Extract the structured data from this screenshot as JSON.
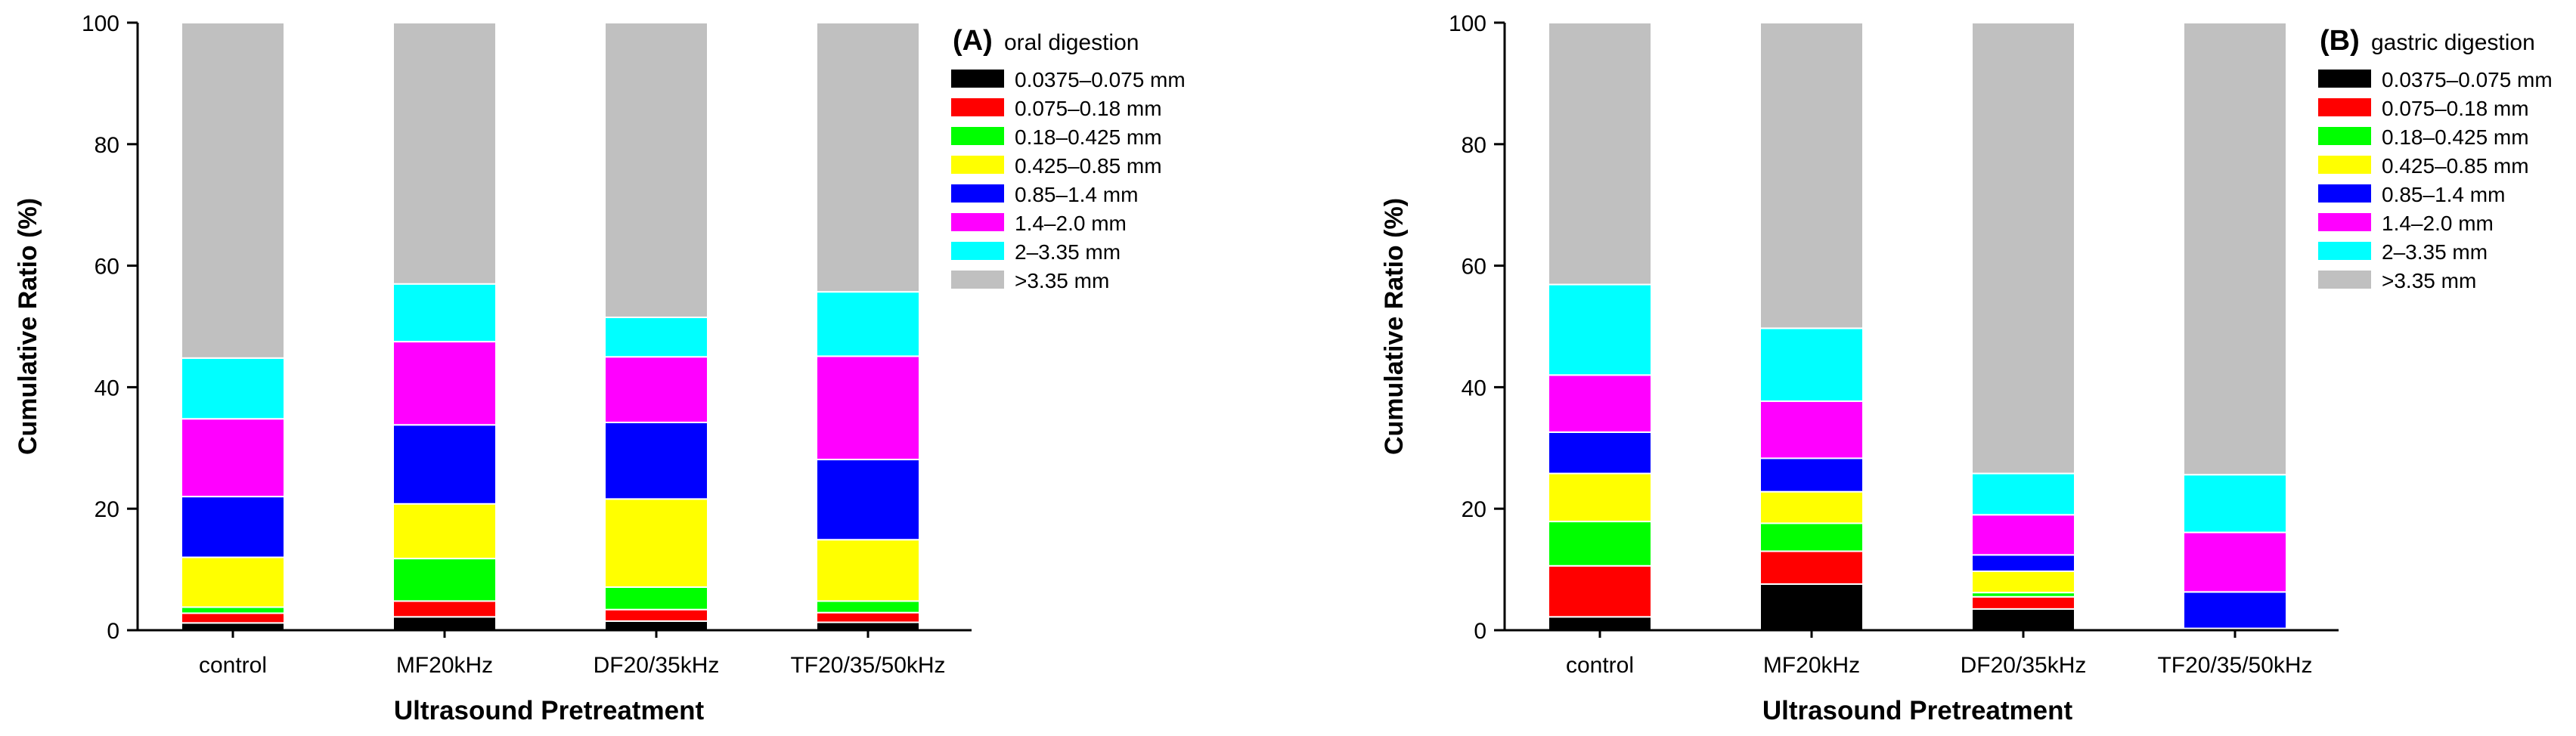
{
  "chart_data": [
    {
      "type": "bar",
      "stacked": true,
      "panel_label": "(A)",
      "title": "oral digestion",
      "xlabel": "Ultrasound Pretreatment",
      "ylabel": "Cumulative Ratio (%)",
      "ylim": [
        0,
        100
      ],
      "yticks": [
        "0",
        "20",
        "40",
        "60",
        "80",
        "100"
      ],
      "grid": false,
      "legend_position": "top-right",
      "categories": [
        "control",
        "MF20kHz",
        "DF20/35kHz",
        "TF20/35/50kHz"
      ],
      "series": [
        {
          "name": "0.0375–0.075 mm",
          "color": "#000000",
          "values": [
            1.2,
            2.2,
            1.5,
            1.3
          ]
        },
        {
          "name": "0.075–0.18 mm",
          "color": "#ff0000",
          "values": [
            1.6,
            2.6,
            1.9,
            1.6
          ]
        },
        {
          "name": "0.18–0.425 mm",
          "color": "#00ff00",
          "values": [
            1.0,
            7.0,
            3.7,
            1.9
          ]
        },
        {
          "name": "0.425–0.85 mm",
          "color": "#ffff00",
          "values": [
            8.2,
            9.0,
            14.5,
            10.1
          ]
        },
        {
          "name": "0.85–1.4 mm",
          "color": "#0000ff",
          "values": [
            10.0,
            13.0,
            12.6,
            13.2
          ]
        },
        {
          "name": "1.4–2.0 mm",
          "color": "#ff00ff",
          "values": [
            12.8,
            13.7,
            10.8,
            17.0
          ]
        },
        {
          "name": "2–3.35 mm",
          "color": "#00ffff",
          "values": [
            10.0,
            9.5,
            6.5,
            10.6
          ]
        },
        {
          "name": ">3.35 mm",
          "color": "#c0c0c0",
          "values": [
            55.2,
            43.0,
            48.5,
            44.3
          ]
        }
      ]
    },
    {
      "type": "bar",
      "stacked": true,
      "panel_label": "(B)",
      "title": "gastric digestion",
      "xlabel": "Ultrasound Pretreatment",
      "ylabel": "Cumulative Ratio (%)",
      "ylim": [
        0,
        100
      ],
      "yticks": [
        "0",
        "20",
        "40",
        "60",
        "80",
        "100"
      ],
      "grid": false,
      "legend_position": "top-right",
      "categories": [
        "control",
        "MF20kHz",
        "DF20/35kHz",
        "TF20/35/50kHz"
      ],
      "series": [
        {
          "name": "0.0375–0.075 mm",
          "color": "#000000",
          "values": [
            2.2,
            7.6,
            3.5,
            0.3
          ]
        },
        {
          "name": "0.075–0.18 mm",
          "color": "#ff0000",
          "values": [
            8.4,
            5.4,
            2.0,
            0.0
          ]
        },
        {
          "name": "0.18–0.425 mm",
          "color": "#00ff00",
          "values": [
            7.3,
            4.6,
            0.7,
            0.0
          ]
        },
        {
          "name": "0.425–0.85 mm",
          "color": "#ffff00",
          "values": [
            7.9,
            5.2,
            3.5,
            0.0
          ]
        },
        {
          "name": "0.85–1.4 mm",
          "color": "#0000ff",
          "values": [
            6.8,
            5.5,
            2.7,
            6.0
          ]
        },
        {
          "name": "1.4–2.0 mm",
          "color": "#ff00ff",
          "values": [
            9.4,
            9.4,
            6.6,
            9.8
          ]
        },
        {
          "name": "2–3.35 mm",
          "color": "#00ffff",
          "values": [
            14.9,
            12.0,
            6.8,
            9.5
          ]
        },
        {
          "name": ">3.35 mm",
          "color": "#c0c0c0",
          "values": [
            43.1,
            50.3,
            74.2,
            74.4
          ]
        }
      ]
    }
  ]
}
